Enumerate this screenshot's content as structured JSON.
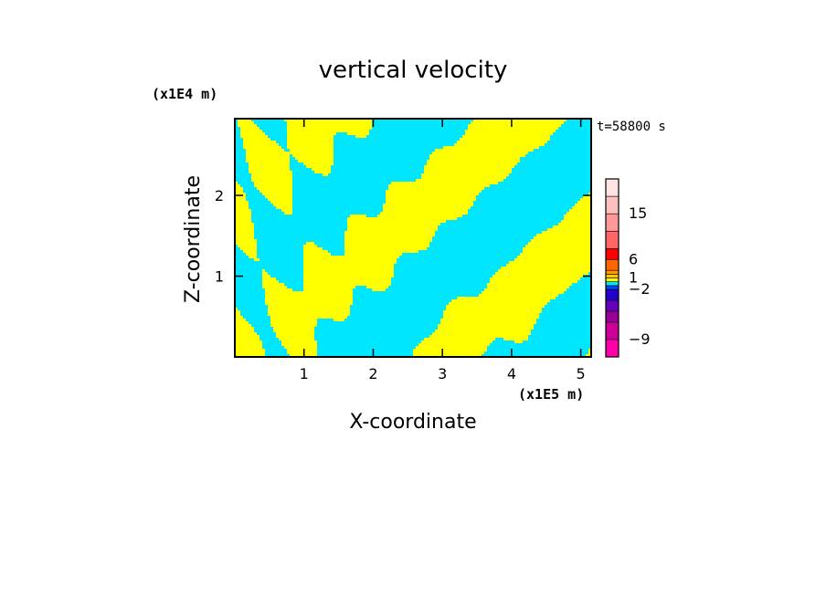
{
  "chart_data": {
    "type": "heatmap",
    "title": "vertical velocity",
    "xlabel": "X-coordinate",
    "ylabel": "Z-coordinate",
    "x_unit": "(x1E5 m)",
    "y_unit": "(x1E4 m)",
    "time_label": "t=58800 s",
    "xlim": [
      0,
      5.15
    ],
    "ylim": [
      0,
      2.95
    ],
    "x_ticks": [
      {
        "value": 1,
        "label": "1"
      },
      {
        "value": 2,
        "label": "2"
      },
      {
        "value": 3,
        "label": "3"
      },
      {
        "value": 4,
        "label": "4"
      },
      {
        "value": 5,
        "label": "5"
      }
    ],
    "y_ticks": [
      {
        "value": 1,
        "label": "1"
      },
      {
        "value": 2,
        "label": "2"
      }
    ],
    "field_colors": {
      "positive": "#ffff00",
      "negative": "#00e6ff"
    },
    "colorbar": {
      "levels": [
        {
          "value": -12,
          "color": "#ff00a8"
        },
        {
          "value": -9,
          "color": "#cc0099"
        },
        {
          "value": -6,
          "color": "#990099"
        },
        {
          "value": -4,
          "color": "#6600bb"
        },
        {
          "value": -3,
          "color": "#2200cc"
        },
        {
          "value": -2,
          "color": "#0044ff"
        },
        {
          "value": -1,
          "color": "#00e6ff"
        },
        {
          "value": 0,
          "color": "#ffff00"
        },
        {
          "value": 1,
          "color": "#ffcc00"
        },
        {
          "value": 2,
          "color": "#ff9900"
        },
        {
          "value": 4,
          "color": "#ff6600"
        },
        {
          "value": 6,
          "color": "#ff0000"
        },
        {
          "value": 9,
          "color": "#ff6666"
        },
        {
          "value": 12,
          "color": "#ff9999"
        },
        {
          "value": 15,
          "color": "#ffc0c0"
        },
        {
          "value": 20,
          "color": "#ffe4e4"
        }
      ],
      "labels": [
        "15",
        "6",
        "1",
        "−2",
        "−9"
      ]
    }
  }
}
